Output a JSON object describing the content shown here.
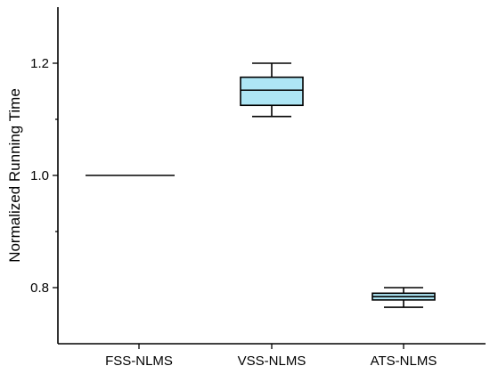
{
  "chart_data": {
    "type": "box",
    "title": "",
    "xlabel": "",
    "ylabel": "Normalized Running Time",
    "ylim": [
      0.7,
      1.3
    ],
    "y_ticks": [
      0.8,
      1.0,
      1.2
    ],
    "y_tick_labels": [
      "0.8",
      "1.0",
      "1.2"
    ],
    "grid": false,
    "legend": "none",
    "box_color": "#aee6f5",
    "categories": [
      "FSS-NLMS",
      "VSS-NLMS",
      "ATS-NLMS"
    ],
    "boxes": [
      {
        "category": "FSS-NLMS",
        "min": 1.0,
        "q1": 1.0,
        "median": 1.0,
        "q3": 1.0,
        "max": 1.0
      },
      {
        "category": "VSS-NLMS",
        "min": 1.105,
        "q1": 1.125,
        "median": 1.152,
        "q3": 1.175,
        "max": 1.2
      },
      {
        "category": "ATS-NLMS",
        "min": 0.765,
        "q1": 0.778,
        "median": 0.784,
        "q3": 0.79,
        "max": 0.8
      }
    ]
  }
}
